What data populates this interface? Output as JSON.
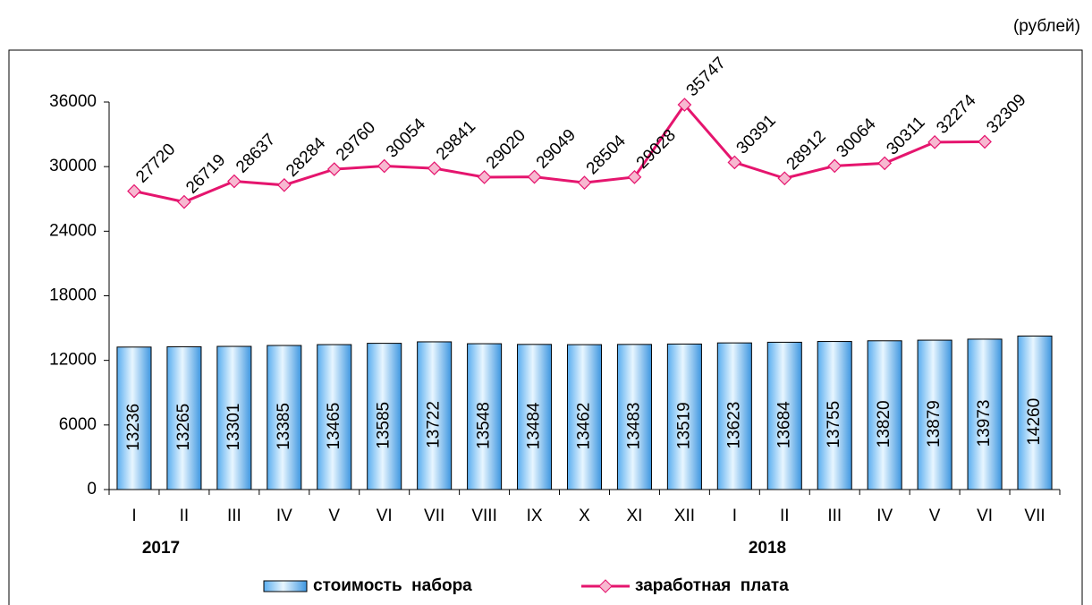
{
  "chart_data": {
    "type": "bar_line",
    "unit_label": "(рублей)",
    "categories": [
      "I",
      "II",
      "III",
      "IV",
      "V",
      "VI",
      "VII",
      "VIII",
      "IX",
      "X",
      "XI",
      "XII",
      "I",
      "II",
      "III",
      "IV",
      "V",
      "VI",
      "VII"
    ],
    "year_labels": [
      "2017",
      "2018"
    ],
    "series": [
      {
        "name": "стоимость  набора",
        "type": "bar",
        "color": "#8fd0f8",
        "values": [
          13236,
          13265,
          13301,
          13385,
          13465,
          13585,
          13722,
          13548,
          13484,
          13462,
          13483,
          13519,
          13623,
          13684,
          13755,
          13820,
          13879,
          13973,
          14260
        ]
      },
      {
        "name": "заработная  плата",
        "type": "line",
        "color": "#e5156e",
        "values": [
          27720,
          26719,
          28637,
          28284,
          29760,
          30054,
          29841,
          29020,
          29049,
          28504,
          29028,
          35747,
          30391,
          28912,
          30064,
          30311,
          32274,
          32309,
          null
        ]
      }
    ],
    "ylim": [
      0,
      36000
    ],
    "yticks": [
      0,
      6000,
      12000,
      18000,
      24000,
      30000,
      36000
    ]
  }
}
